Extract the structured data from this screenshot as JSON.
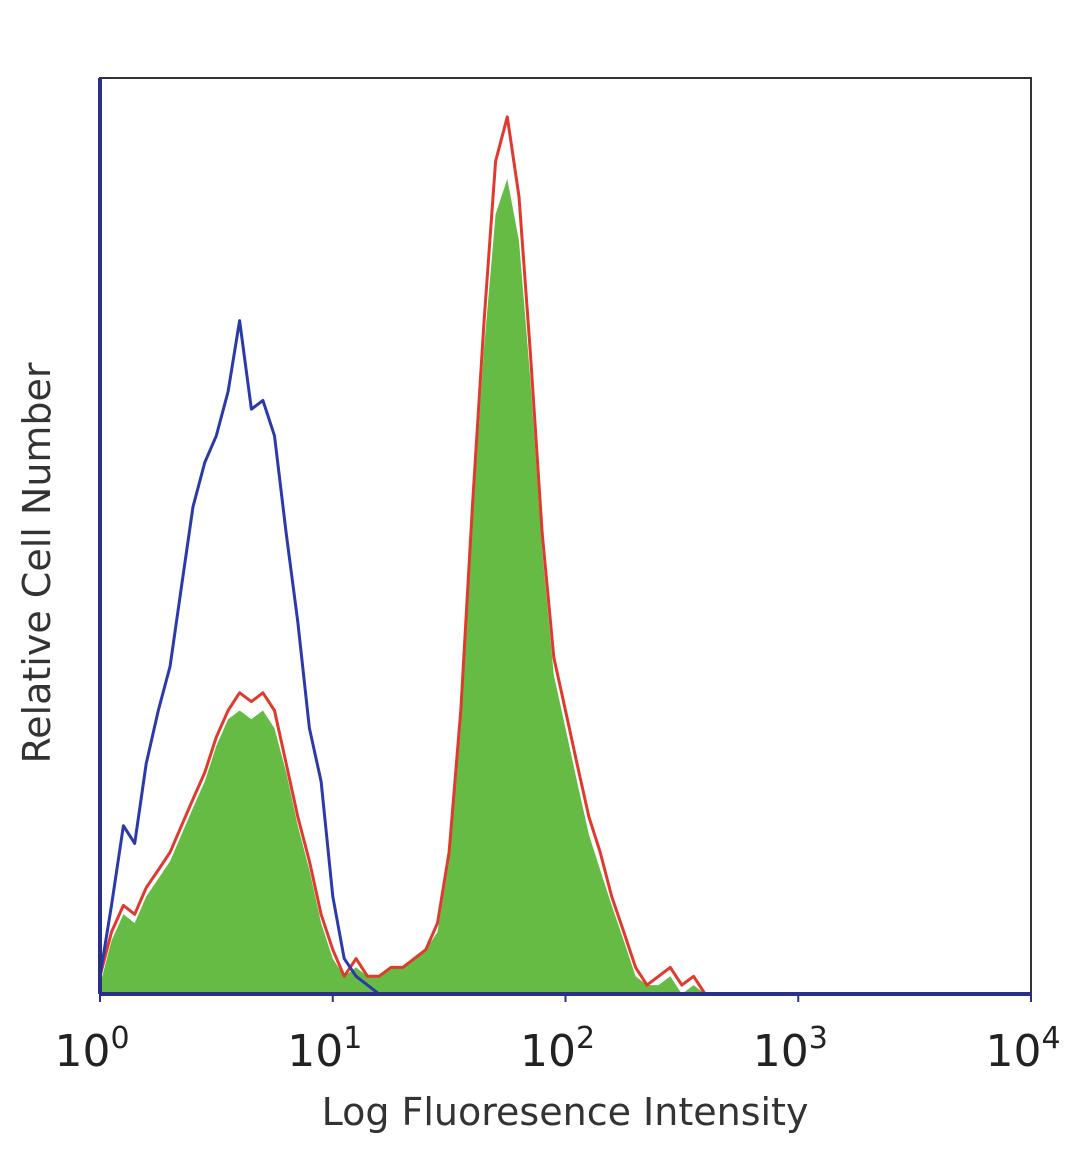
{
  "chart_data": {
    "type": "area",
    "title": "",
    "xlabel": "Log Fluoresence Intensity",
    "ylabel": "Relative Cell Number",
    "x_scale": "log",
    "xlim": [
      1,
      10000
    ],
    "ylim": [
      0,
      1
    ],
    "grid": false,
    "legend": "none",
    "x_ticks": [
      {
        "base": "10",
        "exp": "0"
      },
      {
        "base": "10",
        "exp": "1"
      },
      {
        "base": "10",
        "exp": "2"
      },
      {
        "base": "10",
        "exp": "3"
      },
      {
        "base": "10",
        "exp": "4"
      }
    ],
    "series": [
      {
        "style": "outline",
        "color": "#2b3aa8",
        "x": [
          1.0,
          1.12,
          1.26,
          1.41,
          1.58,
          1.78,
          2.0,
          2.24,
          2.51,
          2.82,
          3.16,
          3.55,
          3.98,
          4.47,
          5.01,
          5.62,
          6.31,
          7.08,
          7.94,
          8.91,
          10.0,
          11.2,
          12.6,
          14.1,
          15.8,
          17.8,
          20.0
        ],
        "values": [
          0.02,
          0.1,
          0.19,
          0.17,
          0.26,
          0.32,
          0.37,
          0.46,
          0.55,
          0.6,
          0.63,
          0.68,
          0.76,
          0.66,
          0.67,
          0.63,
          0.52,
          0.42,
          0.3,
          0.24,
          0.11,
          0.04,
          0.02,
          0.01,
          0.0,
          0.0,
          0.0
        ]
      },
      {
        "style": "outline",
        "color": "#e03a2e",
        "x": [
          1.0,
          1.12,
          1.26,
          1.41,
          1.58,
          1.78,
          2.0,
          2.24,
          2.51,
          2.82,
          3.16,
          3.55,
          3.98,
          4.47,
          5.01,
          5.62,
          6.31,
          7.08,
          7.94,
          8.91,
          10.0,
          11.2,
          12.6,
          14.1,
          15.8,
          17.8,
          20.0,
          22.4,
          25.1,
          28.2,
          31.6,
          35.5,
          39.8,
          44.7,
          50.1,
          56.2,
          63.1,
          70.8,
          79.4,
          89.1,
          100.0,
          112.0,
          126.0,
          141.0,
          158.0,
          178.0,
          200.0,
          224.0,
          251.0,
          282.0,
          316.0,
          355.0,
          398.0,
          447.0
        ],
        "values": [
          0.02,
          0.07,
          0.1,
          0.09,
          0.12,
          0.14,
          0.16,
          0.19,
          0.22,
          0.25,
          0.29,
          0.32,
          0.34,
          0.33,
          0.34,
          0.32,
          0.26,
          0.2,
          0.15,
          0.09,
          0.05,
          0.02,
          0.04,
          0.02,
          0.02,
          0.03,
          0.03,
          0.04,
          0.05,
          0.08,
          0.16,
          0.32,
          0.55,
          0.76,
          0.94,
          0.99,
          0.9,
          0.72,
          0.52,
          0.38,
          0.32,
          0.26,
          0.2,
          0.16,
          0.11,
          0.07,
          0.03,
          0.01,
          0.02,
          0.03,
          0.01,
          0.02,
          0.0,
          0.0
        ]
      },
      {
        "style": "filled",
        "color": "#66bb44",
        "x": [
          1.0,
          1.12,
          1.26,
          1.41,
          1.58,
          1.78,
          2.0,
          2.24,
          2.51,
          2.82,
          3.16,
          3.55,
          3.98,
          4.47,
          5.01,
          5.62,
          6.31,
          7.08,
          7.94,
          8.91,
          10.0,
          11.2,
          12.6,
          14.1,
          15.8,
          17.8,
          20.0,
          22.4,
          25.1,
          28.2,
          31.6,
          35.5,
          39.8,
          44.7,
          50.1,
          56.2,
          63.1,
          70.8,
          79.4,
          89.1,
          100.0,
          112.0,
          126.0,
          141.0,
          158.0,
          178.0,
          200.0,
          224.0,
          251.0,
          282.0,
          316.0,
          355.0,
          398.0,
          447.0
        ],
        "values": [
          0.01,
          0.06,
          0.09,
          0.08,
          0.11,
          0.13,
          0.15,
          0.18,
          0.21,
          0.24,
          0.28,
          0.31,
          0.32,
          0.31,
          0.32,
          0.3,
          0.25,
          0.19,
          0.14,
          0.08,
          0.04,
          0.02,
          0.03,
          0.02,
          0.02,
          0.03,
          0.03,
          0.04,
          0.05,
          0.07,
          0.15,
          0.3,
          0.53,
          0.73,
          0.88,
          0.92,
          0.85,
          0.69,
          0.5,
          0.36,
          0.3,
          0.24,
          0.18,
          0.14,
          0.1,
          0.06,
          0.02,
          0.01,
          0.01,
          0.02,
          0.0,
          0.01,
          0.0,
          0.0
        ]
      }
    ]
  }
}
